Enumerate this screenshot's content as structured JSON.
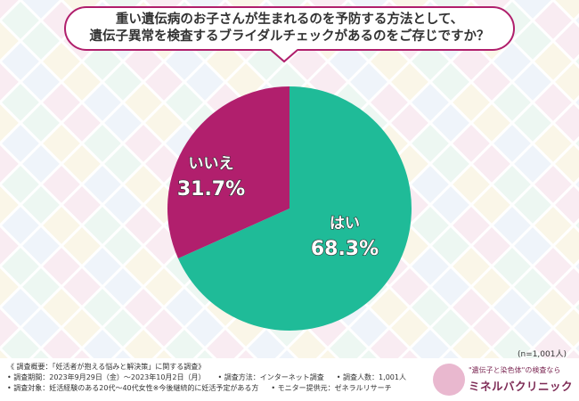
{
  "question": {
    "line1": "重い遺伝病のお子さんが生まれるのを予防する方法として、",
    "line2": "遺伝子異常を検査するブライダルチェックがあるのをご存じですか？"
  },
  "colors": {
    "yes": "#1fbb98",
    "no": "#b11f6d",
    "accent": "#b01f6c"
  },
  "chart_data": {
    "type": "pie",
    "slices": [
      {
        "label": "はい",
        "value": 68.3,
        "value_label": "68.3%",
        "color": "#1fbb98"
      },
      {
        "label": "いいえ",
        "value": 31.7,
        "value_label": "31.7%",
        "color": "#b11f6d"
      }
    ],
    "start": "12 o'clock",
    "direction": "clockwise"
  },
  "sample_size": "(n=1,001人)",
  "survey": {
    "line1": "《 調査概要：「妊活者が抱える悩みと解決策」に関する調査》",
    "period": "• 調査期間：2023年9月29日（金）～2023年10月2日（月）",
    "method": "• 調査方法：インターネット調査",
    "count": "• 調査人数：1,001人",
    "target": "• 調査対象：妊活経験のある20代～40代女性※今後継続的に妊活予定がある方",
    "provider": "• モニター提供元：ゼネラルリサーチ"
  },
  "logo": {
    "tagline": "\"遺伝子と染色体\"の検査なら",
    "name": "ミネルバクリニック"
  }
}
